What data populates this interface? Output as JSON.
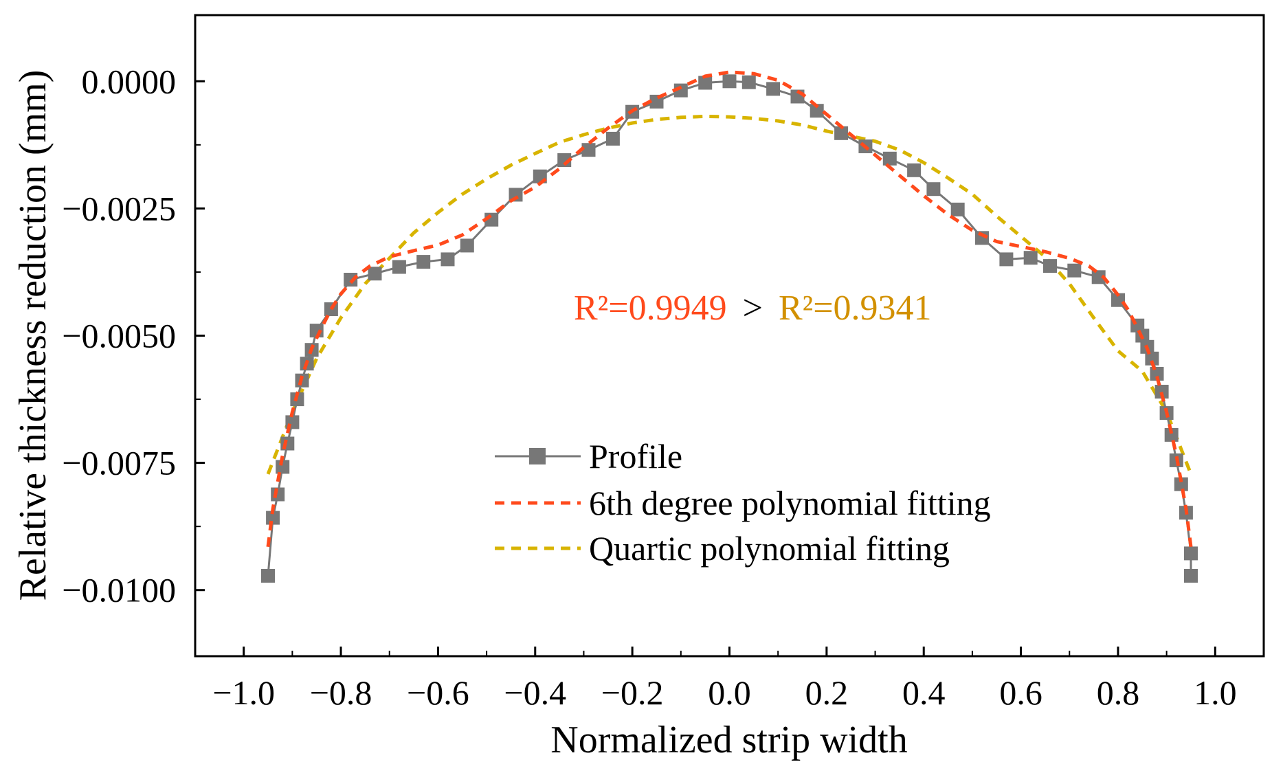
{
  "chart_data": {
    "type": "line",
    "xlabel": "Normalized strip width",
    "ylabel": "Relative thickness reduction (mm)",
    "xlim": [
      -1.1,
      1.1
    ],
    "ylim": [
      -0.0113,
      0.0013
    ],
    "x_ticks": [
      -1.0,
      -0.8,
      -0.6,
      -0.4,
      -0.2,
      0.0,
      0.2,
      0.4,
      0.6,
      0.8,
      1.0
    ],
    "x_tick_labels": [
      "−1.0",
      "−0.8",
      "−0.6",
      "−0.4",
      "−0.2",
      "0.0",
      "0.2",
      "0.4",
      "0.6",
      "0.8",
      "1.0"
    ],
    "y_ticks": [
      0.0,
      -0.0025,
      -0.005,
      -0.0075,
      -0.01
    ],
    "y_tick_labels": [
      "0.0000",
      "−0.0025",
      "−0.0050",
      "−0.0075",
      "−0.0100"
    ],
    "grid": false,
    "legend_position": "bottom-center",
    "series": [
      {
        "name": "Profile",
        "style": "solid-square",
        "color": "#777777",
        "x": [
          -0.95,
          -0.94,
          -0.93,
          -0.92,
          -0.91,
          -0.9,
          -0.89,
          -0.88,
          -0.87,
          -0.86,
          -0.85,
          -0.82,
          -0.78,
          -0.73,
          -0.68,
          -0.63,
          -0.58,
          -0.54,
          -0.49,
          -0.44,
          -0.39,
          -0.34,
          -0.29,
          -0.24,
          -0.2,
          -0.15,
          -0.1,
          -0.05,
          0.0,
          0.04,
          0.09,
          0.14,
          0.18,
          0.23,
          0.28,
          0.33,
          0.38,
          0.42,
          0.47,
          0.52,
          0.57,
          0.62,
          0.66,
          0.71,
          0.76,
          0.8,
          0.84,
          0.85,
          0.86,
          0.87,
          0.88,
          0.89,
          0.9,
          0.91,
          0.92,
          0.93,
          0.94,
          0.95,
          0.95
        ],
        "y": [
          -0.00972,
          -0.00858,
          -0.00812,
          -0.00758,
          -0.00712,
          -0.0067,
          -0.00625,
          -0.00588,
          -0.00555,
          -0.00528,
          -0.0049,
          -0.00448,
          -0.0039,
          -0.00378,
          -0.00365,
          -0.00355,
          -0.0035,
          -0.00323,
          -0.00272,
          -0.00223,
          -0.00187,
          -0.00155,
          -0.00135,
          -0.00113,
          -0.0006,
          -0.0004,
          -0.00018,
          -3e-05,
          0.0,
          -2e-05,
          -0.00015,
          -0.0003,
          -0.00058,
          -0.00102,
          -0.00128,
          -0.00152,
          -0.00175,
          -0.00212,
          -0.00252,
          -0.00308,
          -0.0035,
          -0.00347,
          -0.00363,
          -0.00372,
          -0.00385,
          -0.0043,
          -0.0048,
          -0.005,
          -0.00522,
          -0.00545,
          -0.00575,
          -0.0061,
          -0.00652,
          -0.00695,
          -0.00745,
          -0.00792,
          -0.00848,
          -0.00928,
          -0.00972
        ]
      },
      {
        "name": "6th degree polynomial fitting",
        "style": "dashed",
        "color": "#ff4a1c",
        "x": [
          -0.95,
          -0.94,
          -0.92,
          -0.9,
          -0.88,
          -0.86,
          -0.84,
          -0.82,
          -0.8,
          -0.77,
          -0.74,
          -0.7,
          -0.65,
          -0.6,
          -0.55,
          -0.5,
          -0.45,
          -0.4,
          -0.35,
          -0.3,
          -0.25,
          -0.2,
          -0.15,
          -0.1,
          -0.05,
          0.0,
          0.05,
          0.1,
          0.15,
          0.2,
          0.25,
          0.3,
          0.35,
          0.4,
          0.45,
          0.5,
          0.55,
          0.6,
          0.65,
          0.7,
          0.74,
          0.77,
          0.8,
          0.82,
          0.84,
          0.86,
          0.88,
          0.9,
          0.92,
          0.94,
          0.95
        ],
        "y": [
          -0.00915,
          -0.0084,
          -0.00735,
          -0.0065,
          -0.0058,
          -0.00525,
          -0.00485,
          -0.00448,
          -0.00418,
          -0.00385,
          -0.00363,
          -0.00345,
          -0.00333,
          -0.00322,
          -0.00302,
          -0.0027,
          -0.00235,
          -0.00208,
          -0.00172,
          -0.0013,
          -0.00092,
          -0.00058,
          -0.00033,
          -0.00012,
          0.0001,
          0.00018,
          0.00015,
          2e-05,
          -0.00025,
          -0.00065,
          -0.00105,
          -0.00145,
          -0.00185,
          -0.00225,
          -0.00262,
          -0.00293,
          -0.00315,
          -0.00325,
          -0.00335,
          -0.00348,
          -0.00363,
          -0.00385,
          -0.0042,
          -0.00448,
          -0.00485,
          -0.00525,
          -0.0058,
          -0.0065,
          -0.00735,
          -0.0084,
          -0.00915
        ]
      },
      {
        "name": "Quartic polynomial fitting",
        "style": "dashed",
        "color": "#d8b400",
        "x": [
          -0.95,
          -0.9,
          -0.85,
          -0.8,
          -0.75,
          -0.7,
          -0.65,
          -0.6,
          -0.55,
          -0.5,
          -0.45,
          -0.4,
          -0.35,
          -0.3,
          -0.25,
          -0.2,
          -0.15,
          -0.1,
          -0.05,
          0.0,
          0.05,
          0.1,
          0.15,
          0.2,
          0.25,
          0.3,
          0.35,
          0.4,
          0.45,
          0.5,
          0.55,
          0.6,
          0.65,
          0.7,
          0.75,
          0.8,
          0.85,
          0.9,
          0.95
        ],
        "y": [
          -0.00772,
          -0.0065,
          -0.00545,
          -0.00465,
          -0.00398,
          -0.00348,
          -0.00298,
          -0.00258,
          -0.00222,
          -0.00192,
          -0.00165,
          -0.00142,
          -0.0012,
          -0.00105,
          -0.00092,
          -0.00082,
          -0.00075,
          -0.00071,
          -0.00069,
          -0.0007,
          -0.00073,
          -0.00078,
          -0.00086,
          -0.00098,
          -0.00108,
          -0.00118,
          -0.00135,
          -0.0016,
          -0.0019,
          -0.00222,
          -0.00265,
          -0.00305,
          -0.00345,
          -0.00398,
          -0.00465,
          -0.0053,
          -0.0057,
          -0.0065,
          -0.00772
        ]
      }
    ],
    "annotations": {
      "r2_sixth": "R²=0.9949",
      "comparator": ">",
      "r2_quartic": "R²=0.9341",
      "r2_sixth_color": "#ff4a1c",
      "r2_quartic_color": "#d29000"
    }
  }
}
